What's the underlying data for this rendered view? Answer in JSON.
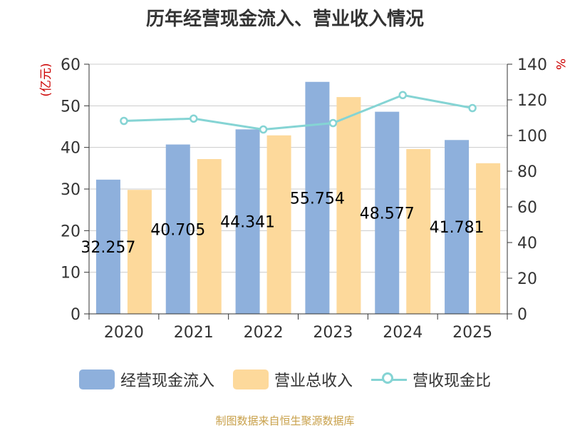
{
  "chart_data": {
    "type": "bar",
    "title": "历年经营现金流入、营业收入情况",
    "categories": [
      "2020",
      "2021",
      "2022",
      "2023",
      "2024",
      "2025"
    ],
    "series": [
      {
        "name": "经营现金流入",
        "type": "bar",
        "axis": "left",
        "color": "#8eb0dc",
        "values": [
          32.257,
          40.705,
          44.341,
          55.754,
          48.577,
          41.781
        ],
        "labels": [
          "32.257",
          "40.705",
          "44.341",
          "55.754",
          "48.577",
          "41.781"
        ]
      },
      {
        "name": "营业总收入",
        "type": "bar",
        "axis": "left",
        "color": "#fdd99b",
        "values": [
          29.8,
          37.2,
          42.9,
          52.1,
          39.6,
          36.2
        ]
      },
      {
        "name": "营收现金比",
        "type": "line",
        "axis": "right",
        "color": "#85d4d4",
        "values": [
          108.2,
          109.5,
          103.4,
          107.0,
          122.7,
          115.4
        ]
      }
    ],
    "ylabel_left": "(亿元)",
    "ylabel_right": "%",
    "ylim_left": [
      0,
      60
    ],
    "ylim_right": [
      0,
      140
    ],
    "yticks_left": [
      "0",
      "10",
      "20",
      "30",
      "40",
      "50",
      "60"
    ],
    "yticks_right": [
      "0",
      "20",
      "40",
      "60",
      "80",
      "100",
      "120",
      "140"
    ],
    "grid": true,
    "legend_position": "bottom"
  },
  "source": "制图数据来自恒生聚源数据库"
}
